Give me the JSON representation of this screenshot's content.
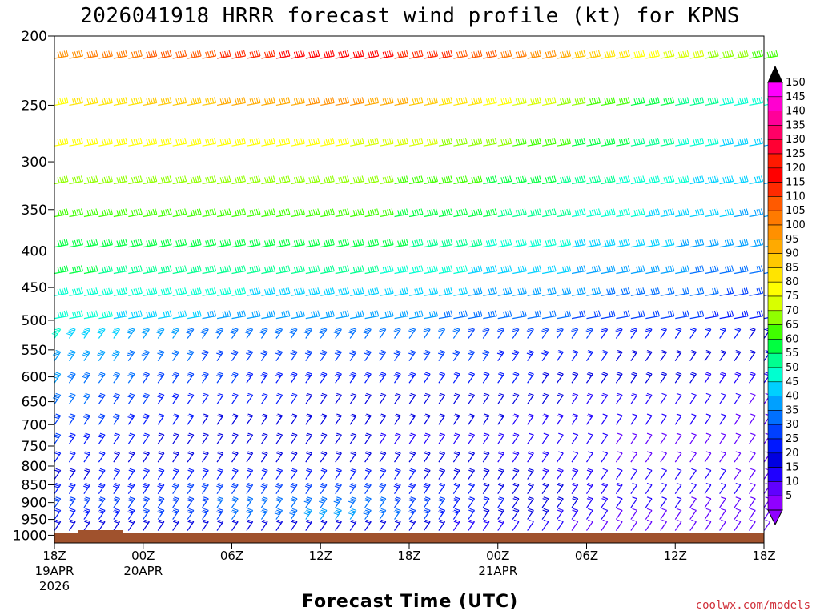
{
  "chart_data": {
    "type": "wind barb profile",
    "title": "2026041918 HRRR forecast wind profile (kt) for KPNS",
    "xlabel": "Forecast Time (UTC)",
    "ylabel": "",
    "y_scale": "log pressure (inverted)",
    "ylim": [
      1025,
      200
    ],
    "y_ticks": [
      200,
      250,
      300,
      350,
      400,
      450,
      500,
      550,
      600,
      650,
      700,
      750,
      800,
      850,
      900,
      950,
      1000
    ],
    "x_range_hours": [
      0,
      48
    ],
    "x_ticks": [
      {
        "hour": 0,
        "label": "18Z",
        "date": "19APR",
        "year": "2026"
      },
      {
        "hour": 6,
        "label": "00Z",
        "date": "20APR",
        "year": ""
      },
      {
        "hour": 12,
        "label": "06Z",
        "date": "",
        "year": ""
      },
      {
        "hour": 18,
        "label": "12Z",
        "date": "",
        "year": ""
      },
      {
        "hour": 24,
        "label": "18Z",
        "date": "",
        "year": ""
      },
      {
        "hour": 30,
        "label": "00Z",
        "date": "21APR",
        "year": ""
      },
      {
        "hour": 36,
        "label": "06Z",
        "date": "",
        "year": ""
      },
      {
        "hour": 42,
        "label": "12Z",
        "date": "",
        "year": ""
      },
      {
        "hour": 48,
        "label": "18Z",
        "date": "",
        "year": ""
      }
    ],
    "colorbar": {
      "labels": [
        "150",
        "145",
        "140",
        "135",
        "130",
        "125",
        "120",
        "115",
        "110",
        "105",
        "100",
        "95",
        "90",
        "85",
        "80",
        "75",
        "70",
        "65",
        "60",
        "55",
        "50",
        "45",
        "40",
        "35",
        "30",
        "25",
        "20",
        "15",
        "10",
        "5"
      ],
      "colors": [
        "#ff00ff",
        "#ff00d0",
        "#ff0099",
        "#ff0066",
        "#ff0033",
        "#ff1a00",
        "#ff0000",
        "#ff2a00",
        "#ff5a00",
        "#ff7a00",
        "#ff9000",
        "#ffaa00",
        "#ffc800",
        "#ffe400",
        "#ffff00",
        "#d8ff00",
        "#90ff00",
        "#40ff00",
        "#00ff40",
        "#00ff90",
        "#00ffd0",
        "#00d0ff",
        "#00a0ff",
        "#0070ff",
        "#0040ff",
        "#0018ff",
        "#0000e0",
        "#2000ff",
        "#6000ff",
        "#9000ff"
      ]
    },
    "surface_band_color": "#a0522d",
    "levels": [
      {
        "p": 215,
        "speeds": [
          100,
          112,
          122,
          110,
          82,
          65
        ]
      },
      {
        "p": 250,
        "speeds": [
          82,
          92,
          100,
          82,
          62,
          48
        ]
      },
      {
        "p": 285,
        "speeds": [
          80,
          80,
          78,
          70,
          58,
          42
        ]
      },
      {
        "p": 322,
        "speeds": [
          70,
          72,
          70,
          62,
          52,
          42
        ]
      },
      {
        "p": 358,
        "speeds": [
          65,
          66,
          65,
          58,
          48,
          40
        ]
      },
      {
        "p": 395,
        "speeds": [
          62,
          62,
          62,
          52,
          45,
          38
        ]
      },
      {
        "p": 430,
        "speeds": [
          58,
          56,
          54,
          46,
          40,
          34
        ]
      },
      {
        "p": 462,
        "speeds": [
          52,
          48,
          46,
          42,
          36,
          30
        ]
      },
      {
        "p": 497,
        "speeds": [
          50,
          42,
          40,
          36,
          30,
          25
        ]
      },
      {
        "p": 530,
        "speeds": [
          48,
          36,
          36,
          32,
          26,
          22
        ]
      },
      {
        "p": 570,
        "speeds": [
          42,
          32,
          30,
          28,
          22,
          18
        ]
      },
      {
        "p": 612,
        "speeds": [
          38,
          28,
          26,
          24,
          20,
          15
        ]
      },
      {
        "p": 655,
        "speeds": [
          35,
          24,
          22,
          20,
          16,
          12
        ]
      },
      {
        "p": 700,
        "speeds": [
          32,
          22,
          20,
          18,
          14,
          12
        ]
      },
      {
        "p": 745,
        "speeds": [
          28,
          20,
          18,
          16,
          12,
          10
        ]
      },
      {
        "p": 790,
        "speeds": [
          24,
          20,
          20,
          18,
          12,
          10
        ]
      },
      {
        "p": 835,
        "speeds": [
          22,
          24,
          25,
          20,
          14,
          12
        ]
      },
      {
        "p": 875,
        "speeds": [
          25,
          28,
          30,
          22,
          15,
          12
        ]
      },
      {
        "p": 915,
        "speeds": [
          28,
          32,
          36,
          24,
          14,
          10
        ]
      },
      {
        "p": 950,
        "speeds": [
          24,
          30,
          40,
          22,
          12,
          10
        ]
      },
      {
        "p": 985,
        "speeds": [
          18,
          20,
          22,
          16,
          10,
          8
        ]
      }
    ]
  },
  "credit": "coolwx.com/models"
}
